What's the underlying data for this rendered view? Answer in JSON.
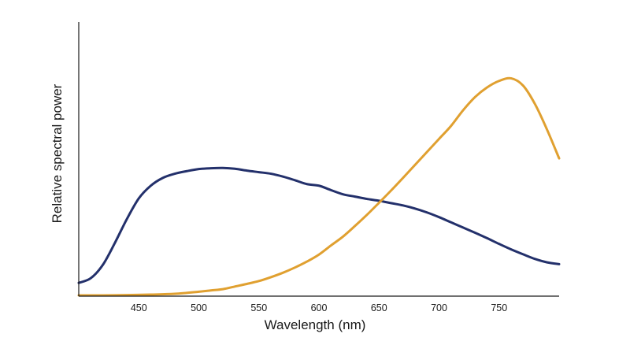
{
  "chart_data": {
    "type": "line",
    "xlabel": "Wavelength (nm)",
    "ylabel": "Relative spectral power",
    "xlim": [
      400,
      800
    ],
    "ylim": [
      0,
      1
    ],
    "x_ticks": [
      450,
      500,
      550,
      600,
      650,
      700,
      750
    ],
    "y_ticks": [],
    "grid": false,
    "legend": "none",
    "series": [
      {
        "color": "#23306b",
        "x": [
          400,
          410,
          420,
          430,
          440,
          450,
          460,
          470,
          480,
          490,
          500,
          510,
          520,
          530,
          540,
          550,
          560,
          570,
          580,
          590,
          600,
          610,
          620,
          630,
          640,
          650,
          660,
          670,
          680,
          690,
          700,
          710,
          720,
          730,
          740,
          750,
          760,
          770,
          780,
          790,
          800
        ],
        "y": [
          0.051,
          0.069,
          0.12,
          0.204,
          0.296,
          0.376,
          0.425,
          0.455,
          0.471,
          0.481,
          0.489,
          0.492,
          0.493,
          0.49,
          0.483,
          0.477,
          0.471,
          0.46,
          0.446,
          0.431,
          0.425,
          0.408,
          0.392,
          0.383,
          0.374,
          0.367,
          0.358,
          0.349,
          0.337,
          0.322,
          0.304,
          0.284,
          0.264,
          0.244,
          0.223,
          0.201,
          0.18,
          0.161,
          0.143,
          0.13,
          0.123
        ]
      },
      {
        "color": "#e0a030",
        "x": [
          400,
          420,
          440,
          460,
          480,
          500,
          510,
          520,
          530,
          540,
          550,
          560,
          570,
          580,
          590,
          600,
          610,
          620,
          630,
          640,
          650,
          660,
          670,
          680,
          690,
          700,
          710,
          720,
          730,
          740,
          750,
          760,
          770,
          780,
          790,
          800
        ],
        "y": [
          0.003,
          0.003,
          0.004,
          0.006,
          0.009,
          0.017,
          0.022,
          0.027,
          0.037,
          0.047,
          0.058,
          0.073,
          0.09,
          0.11,
          0.133,
          0.16,
          0.195,
          0.229,
          0.27,
          0.313,
          0.359,
          0.406,
          0.455,
          0.505,
          0.555,
          0.605,
          0.655,
          0.715,
          0.766,
          0.803,
          0.828,
          0.838,
          0.81,
          0.738,
          0.64,
          0.53
        ]
      }
    ]
  }
}
